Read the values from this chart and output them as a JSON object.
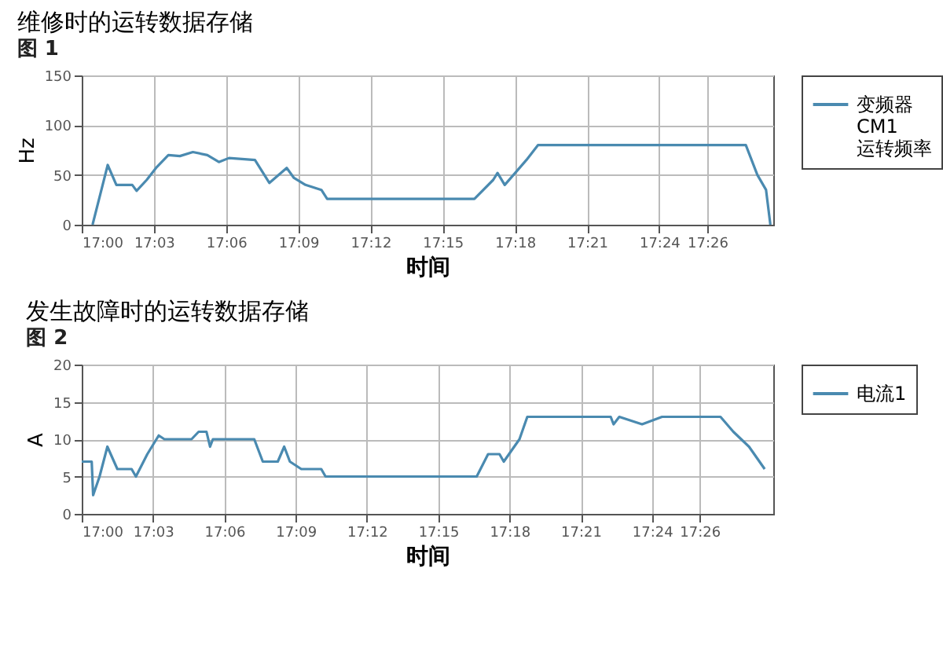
{
  "chart_data": [
    {
      "type": "line",
      "title": "维修时的运转数据存储",
      "subtitle": "图 1",
      "xlabel": "时间",
      "ylabel": "Hz",
      "x": [
        17.0075,
        17.018,
        17.024,
        17.035,
        17.038,
        17.045,
        17.052,
        17.06,
        17.068,
        17.077,
        17.087,
        17.095,
        17.102,
        17.12,
        17.13,
        17.142,
        17.147,
        17.155,
        17.166,
        17.17,
        17.272,
        17.285,
        17.288,
        17.293,
        17.302,
        17.308,
        17.316,
        17.46,
        17.468,
        17.474,
        17.477
      ],
      "series": [
        {
          "name": "变频器 CM1 运转频率",
          "color": "#4a8ab0",
          "values": [
            0,
            60,
            40,
            40,
            34,
            45,
            58,
            70,
            69,
            73,
            70,
            63,
            67,
            65,
            42,
            57,
            47,
            40,
            35,
            26,
            26,
            45,
            52,
            40,
            55,
            65,
            80,
            80,
            50,
            35,
            0
          ]
        }
      ],
      "xlim": [
        17,
        17.479
      ],
      "ylim": [
        0,
        150
      ],
      "xticks": [
        {
          "value": 17,
          "label": "17:00"
        },
        {
          "value": 17.05,
          "label": "17:03"
        },
        {
          "value": 17.1,
          "label": "17:06"
        },
        {
          "value": 17.15,
          "label": "17:09"
        },
        {
          "value": 17.2,
          "label": "17:12"
        },
        {
          "value": 17.25,
          "label": "17:15"
        },
        {
          "value": 17.3,
          "label": "17:18"
        },
        {
          "value": 17.35,
          "label": "17:21"
        },
        {
          "value": 17.4,
          "label": "17:24"
        },
        {
          "value": 17.4333,
          "label": "17:26"
        }
      ],
      "yticks": [
        0,
        50,
        100,
        150
      ],
      "grid": true,
      "legend": "right",
      "marker": "none",
      "line_style": "solid"
    },
    {
      "type": "line",
      "title": "发生故障时的运转数据存储",
      "subtitle": "图 2",
      "xlabel": "时间",
      "ylabel": "A",
      "x": [
        17,
        17.007,
        17.008,
        17.0125,
        17.018,
        17.025,
        17.035,
        17.038,
        17.046,
        17.054,
        17.058,
        17.077,
        17.082,
        17.0875,
        17.09,
        17.092,
        17.121,
        17.127,
        17.1375,
        17.142,
        17.146,
        17.154,
        17.168,
        17.171,
        17.277,
        17.285,
        17.293,
        17.296,
        17.307,
        17.3125,
        17.371,
        17.373,
        17.377,
        17.393,
        17.407,
        17.448,
        17.457,
        17.468,
        17.479
      ],
      "series": [
        {
          "name": "电流1",
          "color": "#4a8ab0",
          "values": [
            7,
            7,
            2.5,
            5,
            9,
            6,
            6,
            5,
            8,
            10.5,
            10,
            10,
            11,
            11,
            9,
            10,
            10,
            7,
            7,
            9,
            7,
            6,
            6,
            5,
            5,
            8,
            8,
            7,
            10,
            13,
            13,
            12,
            13,
            12,
            13,
            13,
            11,
            9,
            6
          ]
        }
      ],
      "xlim": [
        17,
        17.485
      ],
      "ylim": [
        0,
        20
      ],
      "xticks": [
        {
          "value": 17,
          "label": "17:00"
        },
        {
          "value": 17.05,
          "label": "17:03"
        },
        {
          "value": 17.1,
          "label": "17:06"
        },
        {
          "value": 17.15,
          "label": "17:09"
        },
        {
          "value": 17.2,
          "label": "17:12"
        },
        {
          "value": 17.25,
          "label": "17:15"
        },
        {
          "value": 17.3,
          "label": "17:18"
        },
        {
          "value": 17.35,
          "label": "17:21"
        },
        {
          "value": 17.4,
          "label": "17:24"
        },
        {
          "value": 17.4333,
          "label": "17:26"
        }
      ],
      "yticks": [
        0,
        5,
        10,
        15,
        20
      ],
      "grid": true,
      "legend": "right",
      "marker": "none",
      "line_style": "solid"
    }
  ]
}
